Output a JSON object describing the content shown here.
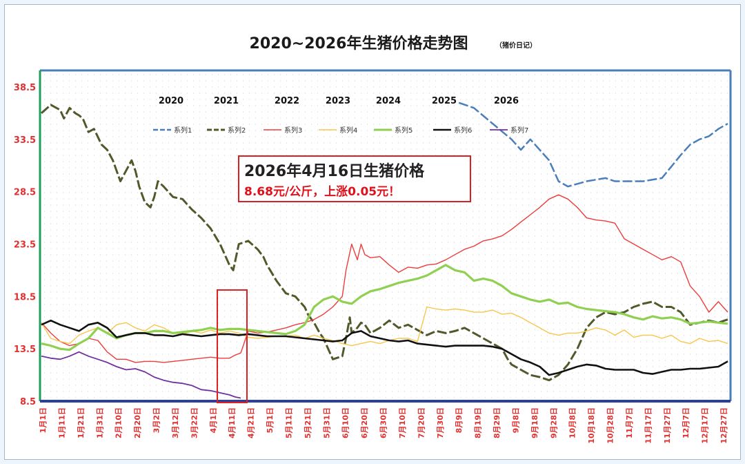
{
  "chart_data": {
    "type": "line",
    "title": "2020~2026年生猪价格走势图",
    "subtitle": "（猪价日记）",
    "ylim": [
      8.5,
      38.5
    ],
    "yticks": [
      "38.5",
      "33.5",
      "28.5",
      "23.5",
      "18.5",
      "13.5",
      "8.5"
    ],
    "xticks": [
      "1月1日",
      "1月11日",
      "1月21日",
      "1月31日",
      "2月10日",
      "2月20日",
      "3月2日",
      "3月12日",
      "3月22日",
      "4月1日",
      "4月11日",
      "4月21日",
      "5月1日",
      "5月11日",
      "5月21日",
      "5月31日",
      "6月10日",
      "6月20日",
      "6月30日",
      "7月10日",
      "7月20日",
      "7月30日",
      "8月9日",
      "8月19日",
      "8月29日",
      "9月8日",
      "9月18日",
      "9月28日",
      "10月8日",
      "10月18日",
      "10月28日",
      "11月7日",
      "11月17日",
      "11月27日",
      "12月7日",
      "12月17日",
      "12月27日"
    ],
    "year_labels": [
      "2020",
      "2021",
      "2022",
      "2023",
      "2024",
      "2025",
      "2026"
    ],
    "annotation": {
      "line1": "2026年4月16日生猪价格",
      "line2": "8.68元/公斤，上涨0.05元！"
    },
    "colors": {
      "系列1": "#4a7ebb",
      "系列2": "#4f5a2b",
      "系列3": "#ee3b3b",
      "系列4": "#f7c64a",
      "系列5": "#8fd050",
      "系列6": "#111111",
      "系列7": "#7030a0"
    },
    "x_range": [
      0,
      365
    ],
    "series": [
      {
        "name": "系列1",
        "style": "dashed",
        "x": [
          222,
          230,
          240,
          250,
          255,
          260,
          270,
          275,
          280,
          290,
          300,
          305,
          310,
          320,
          330,
          340,
          345,
          350,
          355,
          360,
          365
        ],
        "values": [
          37.0,
          36.5,
          35.0,
          33.5,
          32.5,
          33.5,
          31.5,
          29.5,
          29.0,
          29.5,
          29.8,
          29.5,
          29.5,
          29.5,
          29.8,
          32.0,
          33.0,
          33.5,
          33.8,
          34.5,
          35.0
        ]
      },
      {
        "name": "系列2",
        "style": "dashed",
        "x": [
          0,
          5,
          10,
          12,
          15,
          18,
          20,
          22,
          25,
          28,
          32,
          35,
          38,
          42,
          45,
          48,
          50,
          52,
          55,
          58,
          60,
          62,
          65,
          70,
          75,
          80,
          85,
          90,
          95,
          100,
          102,
          105,
          110,
          115,
          118,
          120,
          125,
          130,
          135,
          140,
          142,
          145,
          148,
          150,
          155,
          160,
          162,
          164,
          165,
          168,
          170,
          172,
          175,
          180,
          185,
          190,
          195,
          200,
          205,
          210,
          215,
          220,
          225,
          230,
          235,
          240,
          245,
          248,
          250,
          255,
          260,
          265,
          270,
          275,
          280,
          285,
          290,
          295,
          300,
          305,
          310,
          315,
          320,
          325,
          330,
          335,
          340,
          345,
          350,
          355,
          360,
          365
        ],
        "values": [
          36.0,
          36.8,
          36.3,
          35.5,
          36.5,
          36.0,
          35.8,
          35.5,
          34.2,
          34.5,
          33.0,
          32.5,
          31.5,
          29.5,
          30.5,
          31.5,
          30.5,
          29.0,
          27.5,
          27.0,
          28.0,
          29.5,
          29.0,
          28.0,
          27.8,
          26.8,
          26.0,
          25.0,
          23.5,
          21.5,
          21.0,
          23.5,
          23.8,
          23.0,
          22.3,
          21.5,
          20.0,
          18.8,
          18.5,
          17.5,
          16.7,
          16.0,
          15.0,
          14.5,
          12.5,
          12.8,
          14.5,
          16.5,
          15.0,
          15.5,
          16.0,
          15.8,
          15.0,
          15.5,
          16.2,
          15.5,
          15.8,
          15.3,
          14.8,
          15.2,
          15.0,
          15.2,
          15.5,
          15.0,
          14.5,
          14.0,
          13.5,
          12.5,
          12.0,
          11.5,
          11.0,
          10.8,
          10.5,
          11.0,
          12.0,
          13.5,
          15.5,
          16.5,
          17.0,
          16.8,
          17.0,
          17.5,
          17.8,
          18.0,
          17.5,
          17.5,
          17.0,
          15.8,
          16.0,
          16.2,
          16.0,
          16.3
        ]
      },
      {
        "name": "系列3",
        "style": "solid",
        "x": [
          0,
          5,
          10,
          15,
          20,
          25,
          30,
          35,
          40,
          45,
          50,
          55,
          60,
          65,
          70,
          75,
          80,
          85,
          90,
          95,
          100,
          103,
          106,
          110,
          115,
          120,
          125,
          130,
          135,
          140,
          145,
          150,
          155,
          160,
          162,
          165,
          168,
          170,
          172,
          175,
          180,
          185,
          190,
          195,
          200,
          205,
          210,
          215,
          220,
          225,
          230,
          235,
          240,
          245,
          250,
          255,
          260,
          265,
          270,
          275,
          280,
          285,
          290,
          295,
          300,
          305,
          310,
          315,
          320,
          325,
          330,
          335,
          340,
          345,
          350,
          355,
          360,
          365
        ],
        "values": [
          16.0,
          15.0,
          14.2,
          13.8,
          14.0,
          14.5,
          14.3,
          13.2,
          12.5,
          12.5,
          12.2,
          12.3,
          12.3,
          12.2,
          12.3,
          12.4,
          12.5,
          12.6,
          12.7,
          12.6,
          12.6,
          12.9,
          13.1,
          15.2,
          15.0,
          15.1,
          15.3,
          15.5,
          15.8,
          16.0,
          16.3,
          16.8,
          17.5,
          18.5,
          21.0,
          23.5,
          22.0,
          23.5,
          22.5,
          22.2,
          22.3,
          21.5,
          20.8,
          21.3,
          21.2,
          21.5,
          21.6,
          22.0,
          22.5,
          23.0,
          23.3,
          23.8,
          24.0,
          24.3,
          24.9,
          25.6,
          26.3,
          27.0,
          27.8,
          28.2,
          27.8,
          27.0,
          26.0,
          25.8,
          25.7,
          25.5,
          24.0,
          23.5,
          23.0,
          22.5,
          22.0,
          22.3,
          21.8,
          19.5,
          18.5,
          17.0,
          18.0,
          17.0
        ]
      },
      {
        "name": "系列4",
        "style": "solid",
        "x": [
          0,
          5,
          10,
          15,
          20,
          25,
          30,
          35,
          40,
          45,
          50,
          55,
          60,
          65,
          70,
          75,
          80,
          85,
          90,
          95,
          100,
          105,
          110,
          115,
          120,
          125,
          130,
          135,
          140,
          145,
          150,
          155,
          160,
          165,
          170,
          175,
          180,
          185,
          190,
          195,
          200,
          205,
          210,
          215,
          220,
          225,
          230,
          235,
          240,
          245,
          250,
          255,
          260,
          265,
          270,
          275,
          280,
          285,
          290,
          295,
          300,
          305,
          310,
          315,
          320,
          325,
          330,
          335,
          340,
          345,
          350,
          355,
          360,
          365
        ],
        "values": [
          16.0,
          14.5,
          14.2,
          14.0,
          14.8,
          15.2,
          15.5,
          15.0,
          15.8,
          16.0,
          15.5,
          15.2,
          15.8,
          15.5,
          15.0,
          14.9,
          15.2,
          15.0,
          15.3,
          15.0,
          15.2,
          15.0,
          14.6,
          14.5,
          14.6,
          14.7,
          14.7,
          14.8,
          14.5,
          14.8,
          14.5,
          14.3,
          14.0,
          13.8,
          14.0,
          14.2,
          14.0,
          14.3,
          14.5,
          14.5,
          14.2,
          17.5,
          17.3,
          17.2,
          17.3,
          17.2,
          17.0,
          17.0,
          17.2,
          16.8,
          16.9,
          16.5,
          16.0,
          15.5,
          15.0,
          14.8,
          15.0,
          15.0,
          15.2,
          15.5,
          15.3,
          14.8,
          15.3,
          14.6,
          14.8,
          14.8,
          14.5,
          14.8,
          14.2,
          14.0,
          14.5,
          14.2,
          14.3,
          14.0
        ]
      },
      {
        "name": "系列5",
        "style": "solid",
        "x": [
          0,
          5,
          10,
          15,
          20,
          25,
          30,
          35,
          40,
          45,
          50,
          55,
          60,
          65,
          70,
          75,
          80,
          85,
          90,
          95,
          100,
          105,
          110,
          115,
          120,
          125,
          130,
          135,
          140,
          145,
          150,
          155,
          160,
          165,
          170,
          175,
          180,
          185,
          190,
          195,
          200,
          205,
          210,
          215,
          220,
          225,
          230,
          235,
          240,
          245,
          250,
          255,
          260,
          265,
          270,
          275,
          280,
          285,
          290,
          295,
          300,
          305,
          310,
          315,
          320,
          325,
          330,
          335,
          340,
          345,
          350,
          355,
          360,
          365
        ],
        "values": [
          14.0,
          13.8,
          13.5,
          13.4,
          14.0,
          14.5,
          15.5,
          15.0,
          14.5,
          14.8,
          15.0,
          15.0,
          15.2,
          15.2,
          15.0,
          15.1,
          15.2,
          15.3,
          15.5,
          15.3,
          15.4,
          15.4,
          15.3,
          15.2,
          15.1,
          15.0,
          14.9,
          15.2,
          15.8,
          17.5,
          18.2,
          18.5,
          18.0,
          17.8,
          18.5,
          19.0,
          19.2,
          19.5,
          19.8,
          20.0,
          20.2,
          20.5,
          21.0,
          21.5,
          21.0,
          20.8,
          20.0,
          20.2,
          20.0,
          19.5,
          18.8,
          18.5,
          18.2,
          18.0,
          18.2,
          17.8,
          17.9,
          17.5,
          17.3,
          17.2,
          17.1,
          17.0,
          16.8,
          16.5,
          16.3,
          16.6,
          16.4,
          16.5,
          16.3,
          15.9,
          16.0,
          16.1,
          16.0,
          15.9
        ]
      },
      {
        "name": "系列6",
        "style": "solid",
        "x": [
          0,
          5,
          10,
          15,
          20,
          25,
          30,
          35,
          40,
          45,
          50,
          55,
          60,
          65,
          70,
          75,
          80,
          85,
          90,
          95,
          100,
          105,
          110,
          115,
          120,
          125,
          130,
          135,
          140,
          145,
          150,
          155,
          160,
          165,
          170,
          175,
          180,
          185,
          190,
          195,
          200,
          205,
          210,
          215,
          220,
          225,
          230,
          235,
          240,
          245,
          250,
          255,
          260,
          265,
          270,
          275,
          280,
          285,
          290,
          295,
          300,
          305,
          310,
          315,
          320,
          325,
          330,
          335,
          340,
          345,
          350,
          355,
          360,
          365
        ],
        "values": [
          15.8,
          16.2,
          15.8,
          15.5,
          15.2,
          15.8,
          16.0,
          15.5,
          14.6,
          14.8,
          15.0,
          15.0,
          14.8,
          14.8,
          14.7,
          14.9,
          14.8,
          14.7,
          14.8,
          14.9,
          14.9,
          14.8,
          14.9,
          14.8,
          14.7,
          14.7,
          14.7,
          14.6,
          14.5,
          14.4,
          14.3,
          14.2,
          14.3,
          15.0,
          15.2,
          14.7,
          14.5,
          14.3,
          14.2,
          14.3,
          14.0,
          13.9,
          13.8,
          13.7,
          13.8,
          13.8,
          13.8,
          13.8,
          13.7,
          13.5,
          13.0,
          12.5,
          12.2,
          11.8,
          11.0,
          11.2,
          11.5,
          11.8,
          12.0,
          11.9,
          11.6,
          11.5,
          11.5,
          11.5,
          11.2,
          11.1,
          11.3,
          11.5,
          11.5,
          11.6,
          11.6,
          11.7,
          11.8,
          12.3
        ]
      },
      {
        "name": "系列7",
        "style": "solid",
        "x": [
          0,
          5,
          10,
          15,
          20,
          25,
          30,
          35,
          40,
          45,
          50,
          55,
          60,
          65,
          70,
          75,
          80,
          85,
          90,
          95,
          100,
          103,
          106
        ],
        "values": [
          12.8,
          12.6,
          12.5,
          12.8,
          13.2,
          12.8,
          12.5,
          12.2,
          11.8,
          11.5,
          11.6,
          11.3,
          10.8,
          10.5,
          10.3,
          10.2,
          10.0,
          9.6,
          9.5,
          9.3,
          9.1,
          8.9,
          8.8
        ]
      }
    ]
  }
}
